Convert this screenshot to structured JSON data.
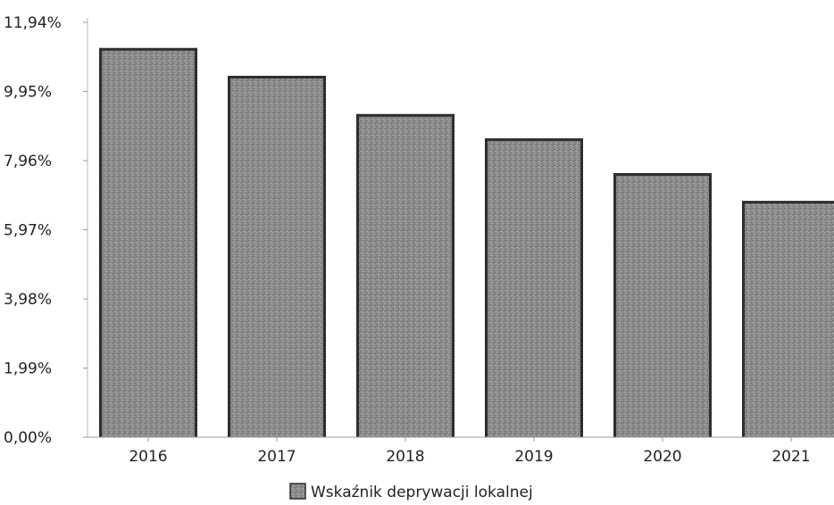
{
  "chart_data": {
    "type": "bar",
    "categories": [
      "2016",
      "2017",
      "2018",
      "2019",
      "2020",
      "2021"
    ],
    "series": [
      {
        "name": "Wskaźnik deprywacji lokalnej",
        "values": [
          11.2,
          10.4,
          9.3,
          8.6,
          7.6,
          6.8
        ],
        "color": "#8f8f8f"
      }
    ],
    "y_ticks": [
      {
        "value": 0,
        "label": "0,00%"
      },
      {
        "value": 1.99,
        "label": "1,99%"
      },
      {
        "value": 3.98,
        "label": "3,98%"
      },
      {
        "value": 5.97,
        "label": "5,97%"
      },
      {
        "value": 7.96,
        "label": "7,96%"
      },
      {
        "value": 9.95,
        "label": "9,95%"
      },
      {
        "value": 11.94,
        "label": "11,94%"
      }
    ],
    "ylim": [
      0,
      11.94
    ],
    "grid": false,
    "legend": "bottom-center",
    "title": "",
    "xlabel": "",
    "ylabel": ""
  }
}
